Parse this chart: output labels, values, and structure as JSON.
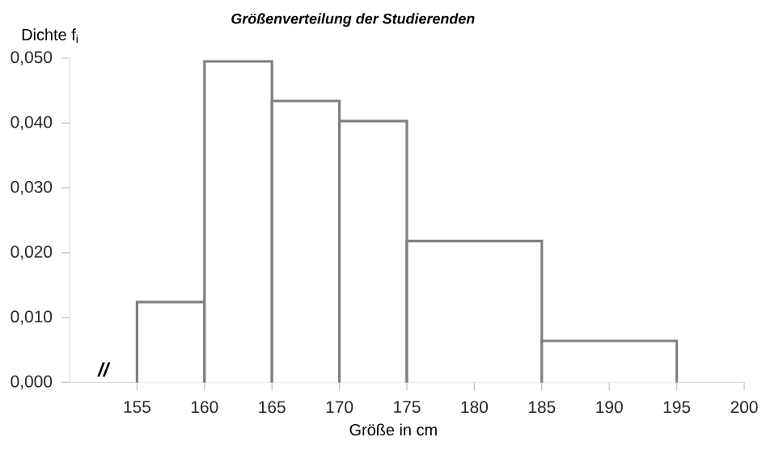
{
  "chart_data": {
    "type": "histogram",
    "title": "Größenverteilung der  Studierenden",
    "xlabel": "Größe in cm",
    "ylabel": "Dichte f$_{i}$",
    "bins": [
      155,
      160,
      165,
      170,
      175,
      185,
      195
    ],
    "values": [
      0.0124,
      0.0495,
      0.0434,
      0.0403,
      0.0218,
      0.0064
    ],
    "color": "#808080",
    "xlim": [
      150,
      200
    ],
    "xticks": [
      155,
      160,
      165,
      170,
      175,
      180,
      185,
      190,
      195,
      200
    ],
    "ylim": [
      0,
      0.05
    ],
    "yticks": [
      {
        "value": 0,
        "label": "0,000"
      },
      {
        "value": 0.01,
        "label": "0,010"
      },
      {
        "value": 0.02,
        "label": "0,020"
      },
      {
        "value": 0.03,
        "label": "0,030"
      },
      {
        "value": 0.04,
        "label": "0,040"
      },
      {
        "value": 0.05,
        "label": "0,050"
      }
    ],
    "annotations": [
      "//"
    ],
    "grid": false
  }
}
